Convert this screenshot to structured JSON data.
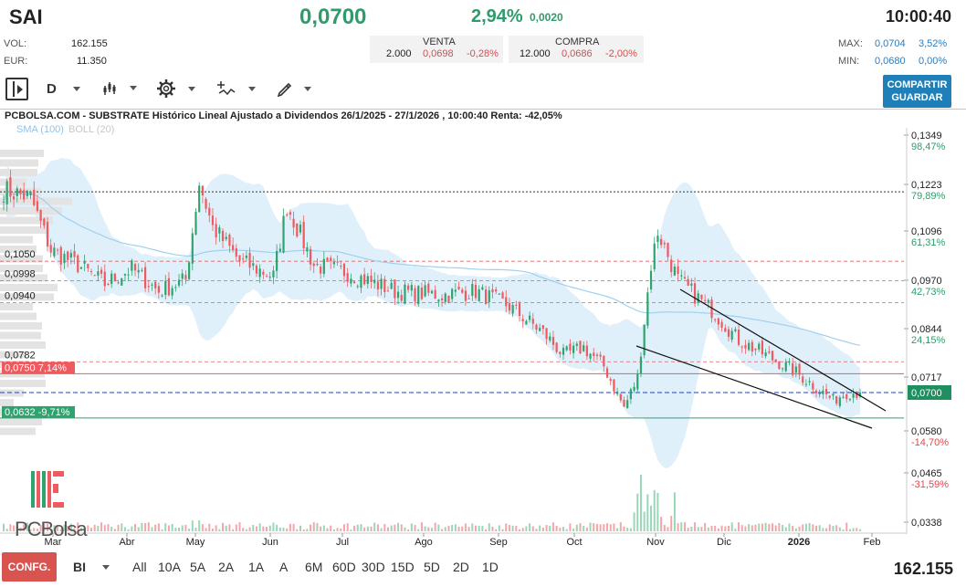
{
  "header": {
    "ticker": "SAI",
    "price": "0,0700",
    "change_pct": "2,94%",
    "change_abs": "0,0020",
    "time": "10:00:40",
    "vol_label": "VOL:",
    "vol_value": "162.155",
    "eur_label": "EUR:",
    "eur_value": "11.350",
    "venta_label": "VENTA",
    "venta_qty": "2.000",
    "venta_price": "0,0698",
    "venta_pct": "-0,28%",
    "compra_label": "COMPRA",
    "compra_qty": "12.000",
    "compra_price": "0,0686",
    "compra_pct": "-2,00%",
    "max_label": "MAX:",
    "max_value": "0,0704",
    "max_pct": "3,52%",
    "min_label": "MIN:",
    "min_value": "0,0680",
    "min_pct": "0,00%"
  },
  "toolbar": {
    "period": "D",
    "share_label_1": "COMPARTIR",
    "share_label_2": "GUARDAR",
    "icons": [
      "panel-toggle-icon",
      "candles-icon",
      "settings-gear-icon",
      "indicators-icon",
      "drawing-pencil-icon"
    ]
  },
  "chart_title": "PCBOLSA.COM - SUBSTRATE Histórico Lineal Ajustado a Dividendos 26/1/2025 - 27/1/2026 , 10:00:40 Renta: -42,05%",
  "legend": {
    "sma": "SMA (100)",
    "boll": "BOLL (20)"
  },
  "chart_data": {
    "type": "candlestick",
    "price_axis_ticks": [
      {
        "price": "0,1349",
        "pct": "98,47%"
      },
      {
        "price": "0,1223",
        "pct": "79,89%"
      },
      {
        "price": "0,1096",
        "pct": "61,31%"
      },
      {
        "price": "0,0970",
        "pct": "42,73%"
      },
      {
        "price": "0,0844",
        "pct": "24,15%"
      },
      {
        "price": "0,0717",
        "pct": ""
      },
      {
        "price": "0,0580",
        "pct": "-14,70%"
      },
      {
        "price": "0,0465",
        "pct": "-31,59%"
      },
      {
        "price": "0,0338",
        "pct": ""
      }
    ],
    "current_price_tag": "0,0700",
    "level_labels": [
      {
        "price": 0.105,
        "label": "0,1050"
      },
      {
        "price": 0.0998,
        "label": "0,0998"
      },
      {
        "price": 0.094,
        "label": "0,0940"
      },
      {
        "price": 0.0782,
        "label": "0,0782"
      },
      {
        "price": 0.075,
        "label": "0,0750  7,14%"
      },
      {
        "price": 0.0632,
        "label": "0,0632  -9,71%"
      }
    ],
    "x_labels": [
      "Mar",
      "Abr",
      "May",
      "Jun",
      "Jul",
      "Ago",
      "Sep",
      "Oct",
      "Nov",
      "Dic",
      "2026",
      "Feb"
    ],
    "colors": {
      "up": "#2ea36f",
      "down": "#ee5a5e",
      "band": "#d6ebfa",
      "sma": "#9fd0ee"
    }
  },
  "footer": {
    "config_label": "CONFG.",
    "bi_label": "BI",
    "timeframes": [
      "All",
      "10A",
      "5A",
      "2A",
      "1A",
      "A",
      "6M",
      "60D",
      "30D",
      "15D",
      "5D",
      "2D",
      "1D"
    ],
    "volume": "162.155"
  },
  "logo": {
    "text": "PCBolsa"
  }
}
